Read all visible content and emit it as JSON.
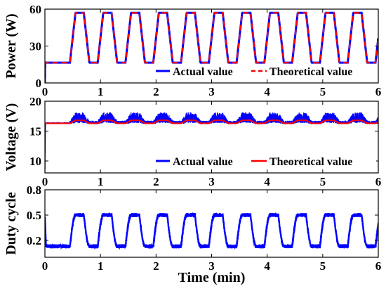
{
  "chart_data": [
    {
      "type": "line",
      "ylabel": "Power (W)",
      "xlim": [
        0,
        6
      ],
      "ylim": [
        0,
        60
      ],
      "x_ticks": [
        "0",
        "1",
        "2",
        "3",
        "4",
        "5",
        "6"
      ],
      "y_ticks": [
        "0",
        "30",
        "60"
      ],
      "legend_position": "bottom-right",
      "square_wave": {
        "low": 16.5,
        "high": 57,
        "start": 0.45,
        "period": 0.5,
        "ramp": 0.1,
        "high_duration": 0.15
      },
      "series": [
        {
          "name": "Actual value",
          "color": "#0000ff",
          "style": "solid"
        },
        {
          "name": "Theoretical value",
          "color": "#ff0000",
          "style": "dashed"
        }
      ]
    },
    {
      "type": "line",
      "ylabel": "Voltage (V)",
      "xlim": [
        0,
        6
      ],
      "ylim": [
        8,
        20
      ],
      "x_ticks": [
        "0",
        "1",
        "2",
        "3",
        "4",
        "5",
        "6"
      ],
      "y_ticks": [
        "10",
        "15",
        "20"
      ],
      "legend_position": "bottom-right",
      "levels": {
        "theoretical_low": 16.3,
        "theoretical_high": 16.8,
        "actual_band": [
          16.0,
          17.7
        ],
        "start_dip": 8.2
      },
      "series": [
        {
          "name": "Actual value",
          "color": "#0000ff",
          "style": "solid"
        },
        {
          "name": "Theoretical value",
          "color": "#ff0000",
          "style": "solid"
        }
      ]
    },
    {
      "type": "line",
      "ylabel": "Duty cycle",
      "xlabel": "Time (min)",
      "xlim": [
        0,
        6
      ],
      "ylim": [
        0,
        0.8
      ],
      "x_ticks": [
        "0",
        "1",
        "2",
        "3",
        "4",
        "5",
        "6"
      ],
      "y_ticks": [
        "0.2",
        "0.5",
        "0.8"
      ],
      "levels": {
        "low": 0.13,
        "high": 0.5
      },
      "series": [
        {
          "name": "Duty cycle",
          "color": "#0000ff",
          "style": "solid"
        }
      ]
    }
  ]
}
